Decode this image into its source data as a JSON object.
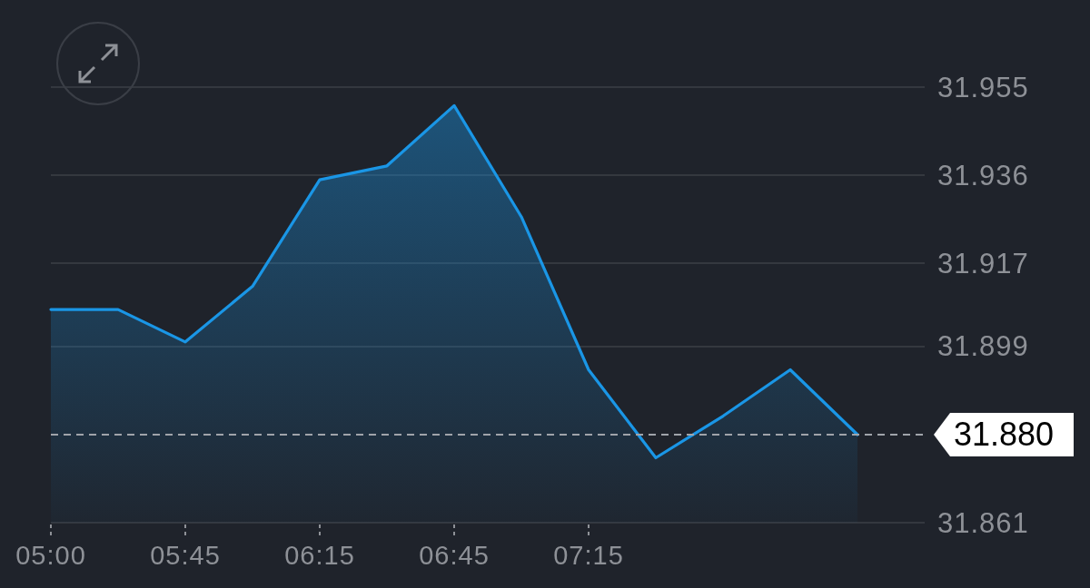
{
  "chart_data": {
    "type": "area",
    "categories": [
      "05:00",
      null,
      "05:45",
      null,
      "06:15",
      null,
      "06:45",
      null,
      "07:15",
      null,
      null,
      null,
      null
    ],
    "values": [
      31.907,
      31.907,
      31.9,
      31.912,
      31.935,
      31.938,
      31.951,
      31.927,
      31.894,
      31.875,
      31.884,
      31.894,
      31.88
    ],
    "color": "#1a96e6",
    "ylim": [
      31.861,
      31.955
    ],
    "yticks": [
      31.861,
      31.899,
      31.917,
      31.936,
      31.955
    ],
    "grid": "y",
    "ref_lines": [
      {
        "axis": "y",
        "value": 31.88,
        "label": "31.880",
        "line_style": "dashed",
        "color": "#a0a4aa"
      }
    ]
  }
}
